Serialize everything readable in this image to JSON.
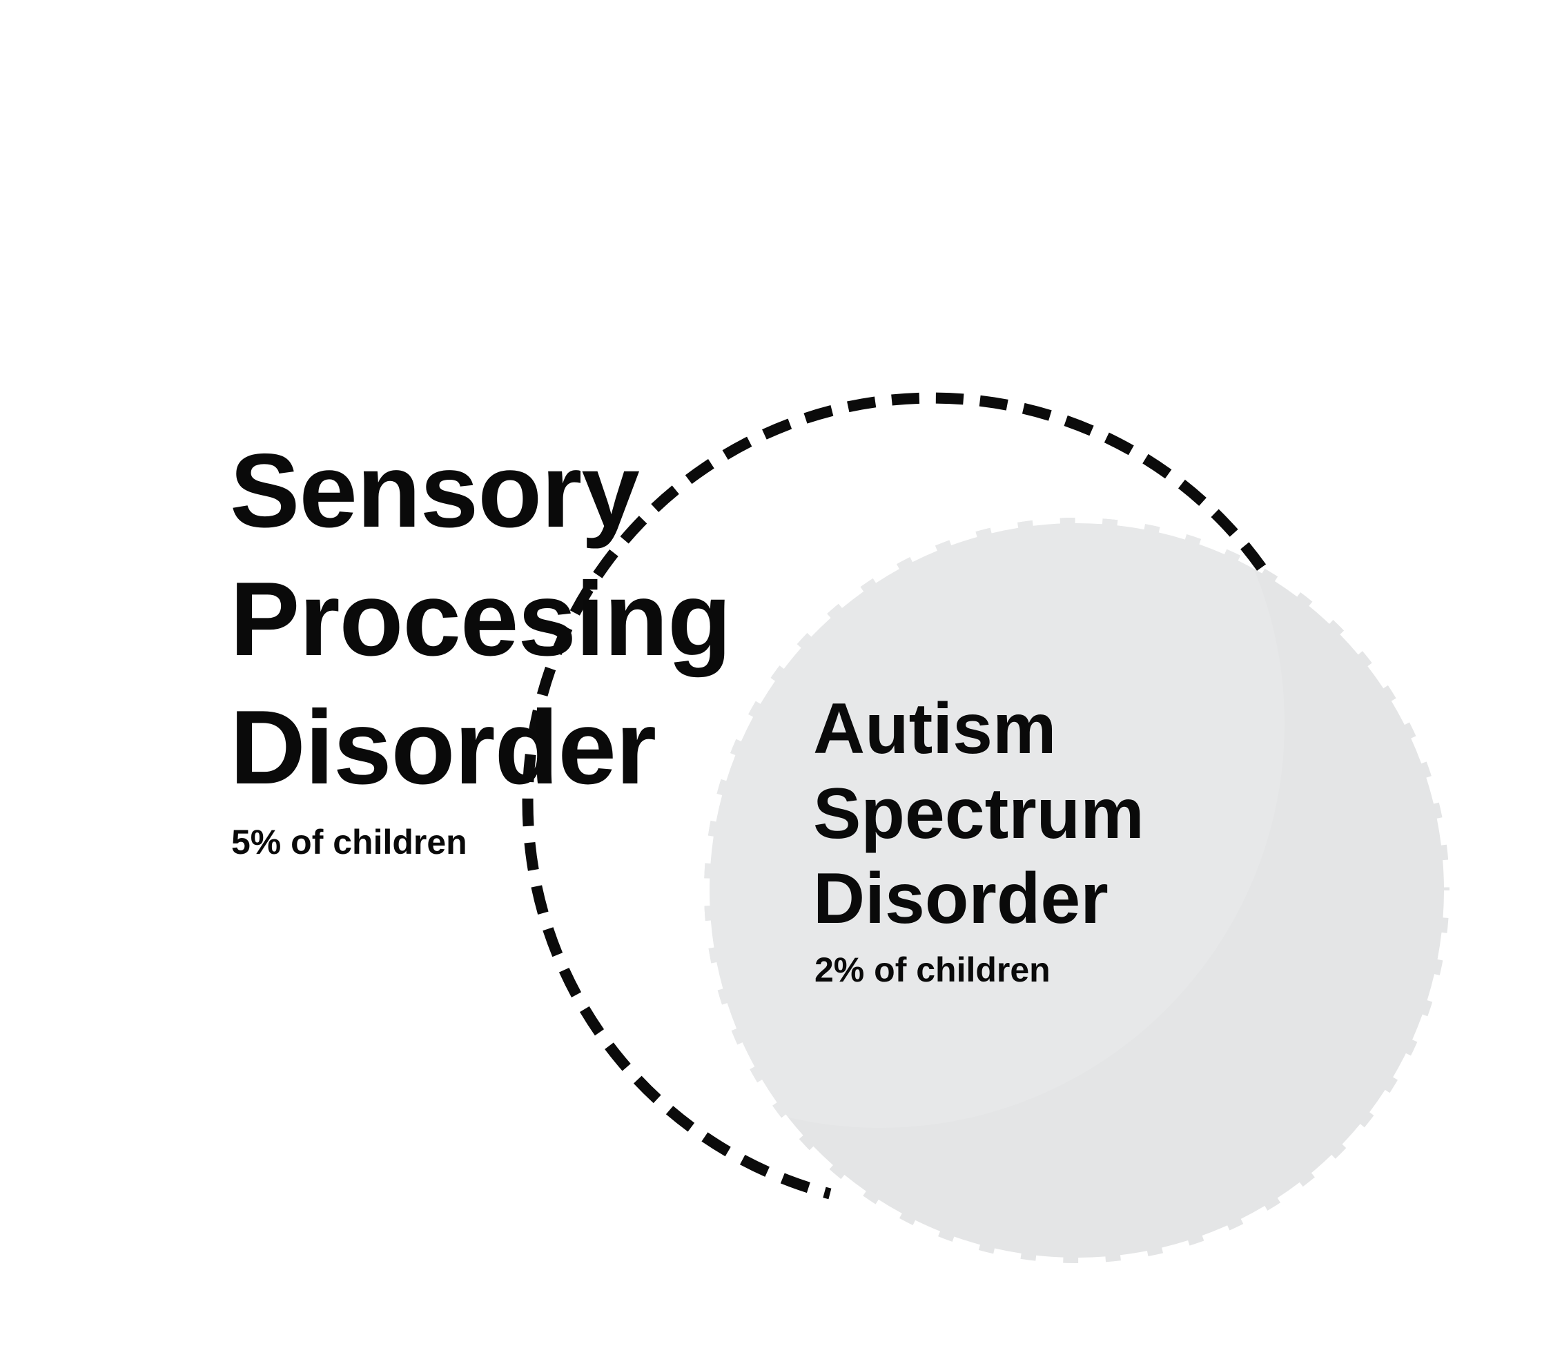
{
  "diagram": {
    "type": "nested-sets",
    "colors": {
      "background": "#ffffff",
      "circle_fill": "#e4e5e6",
      "circle_fill_overlap": "#e7e8e9",
      "spd_boundary_stroke": "#0b0b0b",
      "asd_boundary_stroke": "#ffffff",
      "text": "#0a0a0a"
    },
    "spd": {
      "title_lines": [
        "Sensory",
        "Procesing",
        "Disorder"
      ],
      "stat": "5% of children",
      "boundary_style": "dashed-black"
    },
    "asd": {
      "title_lines": [
        "Autism",
        "Spectrum",
        "Disorder"
      ],
      "stat": "2% of children",
      "boundary_style": "dashed-white"
    }
  }
}
